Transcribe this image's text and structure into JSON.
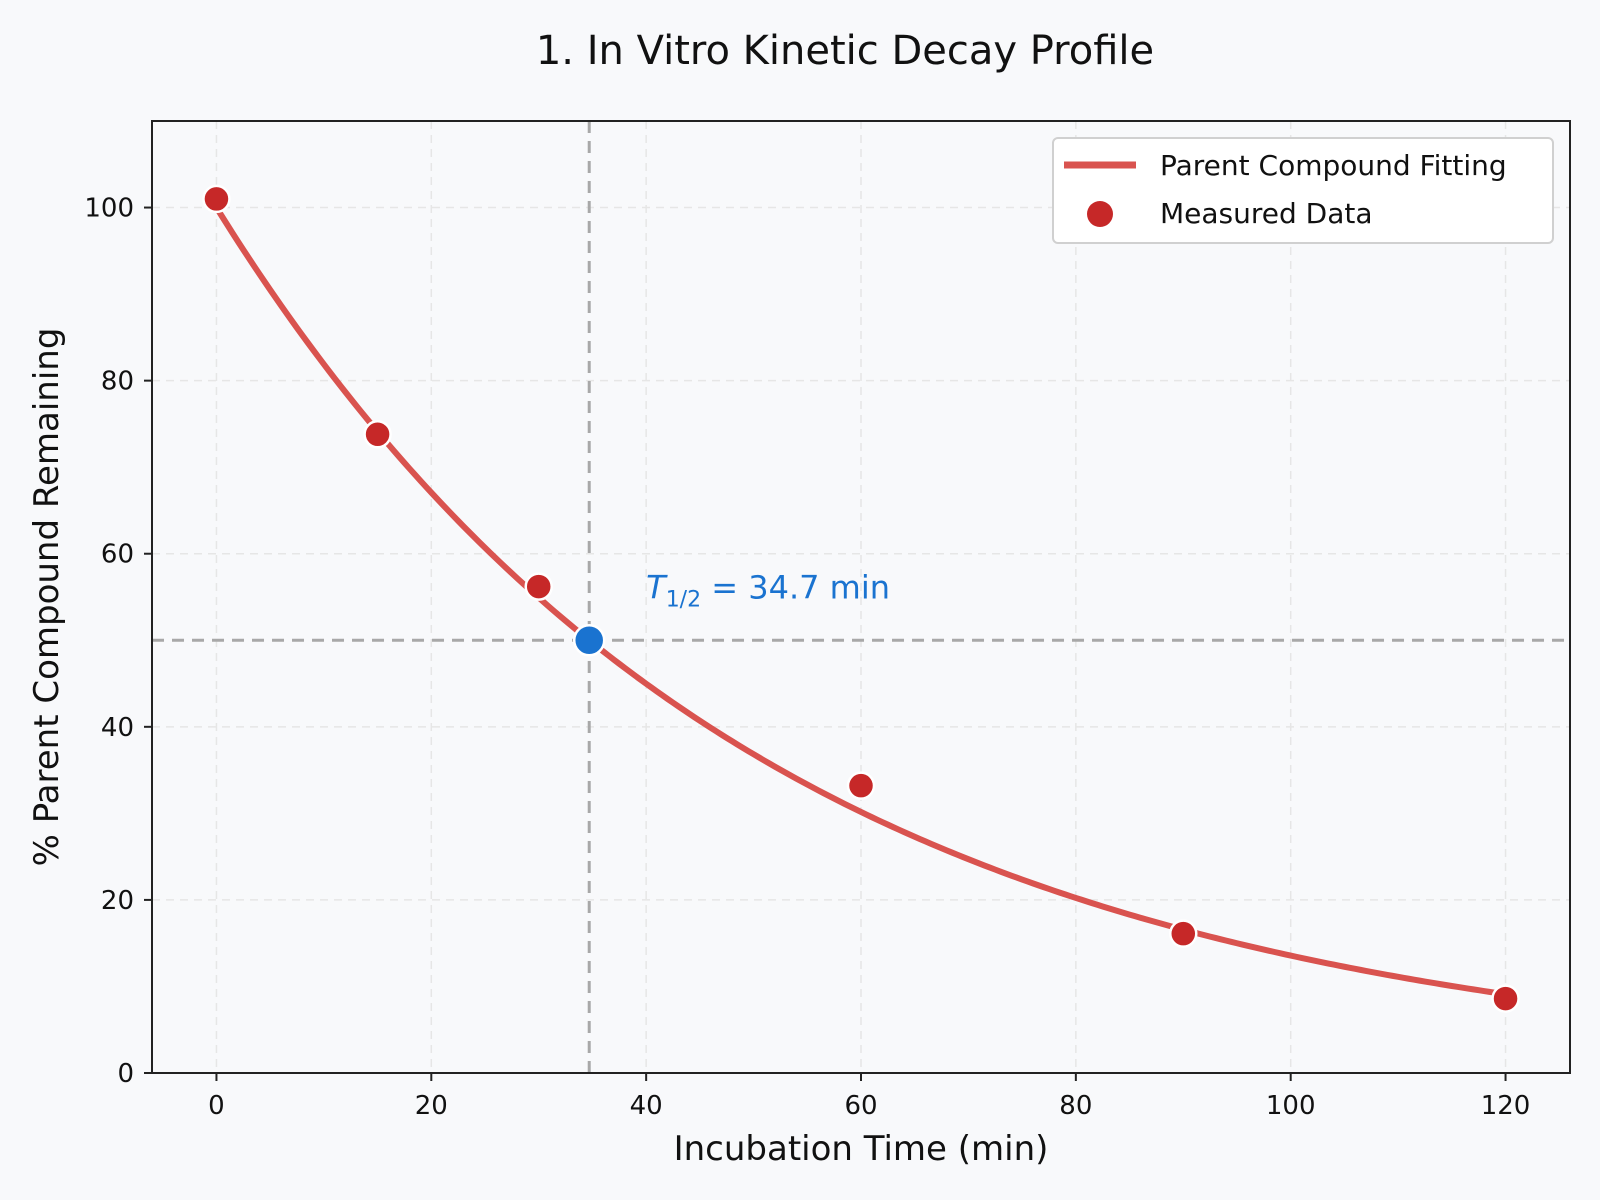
{
  "chart_data": {
    "type": "scatter",
    "title": "1. In Vitro Kinetic Decay Profile",
    "xlabel": "Incubation Time (min)",
    "ylabel": "% Parent Compound Remaining",
    "xlim": [
      -6,
      126
    ],
    "ylim": [
      0,
      110
    ],
    "xticks": [
      0,
      20,
      40,
      60,
      80,
      100,
      120
    ],
    "yticks": [
      0,
      20,
      40,
      60,
      80,
      100
    ],
    "grid": true,
    "legend_position": "top-right",
    "series": [
      {
        "name": "Parent Compound Fitting",
        "type": "line",
        "color": "#d9534f",
        "model": "exponential-decay",
        "y0": 100,
        "half_life": 34.7,
        "x_range": [
          0,
          120
        ]
      },
      {
        "name": "Measured Data",
        "type": "scatter",
        "color": "#c62828",
        "x": [
          0,
          15,
          30,
          60,
          90,
          120
        ],
        "y": [
          101,
          73.8,
          56.2,
          33.2,
          16.1,
          8.6
        ]
      }
    ],
    "half_life_point": {
      "x": 34.7,
      "y": 50,
      "color": "#1a73d0"
    },
    "reference_lines": {
      "horizontal_y": 50,
      "vertical_x": 34.7
    },
    "annotation": {
      "symbol": "T",
      "subscript": "1/2",
      "text": " = 34.7 min",
      "x": 40,
      "y": 56,
      "color": "#1a73d0"
    }
  }
}
